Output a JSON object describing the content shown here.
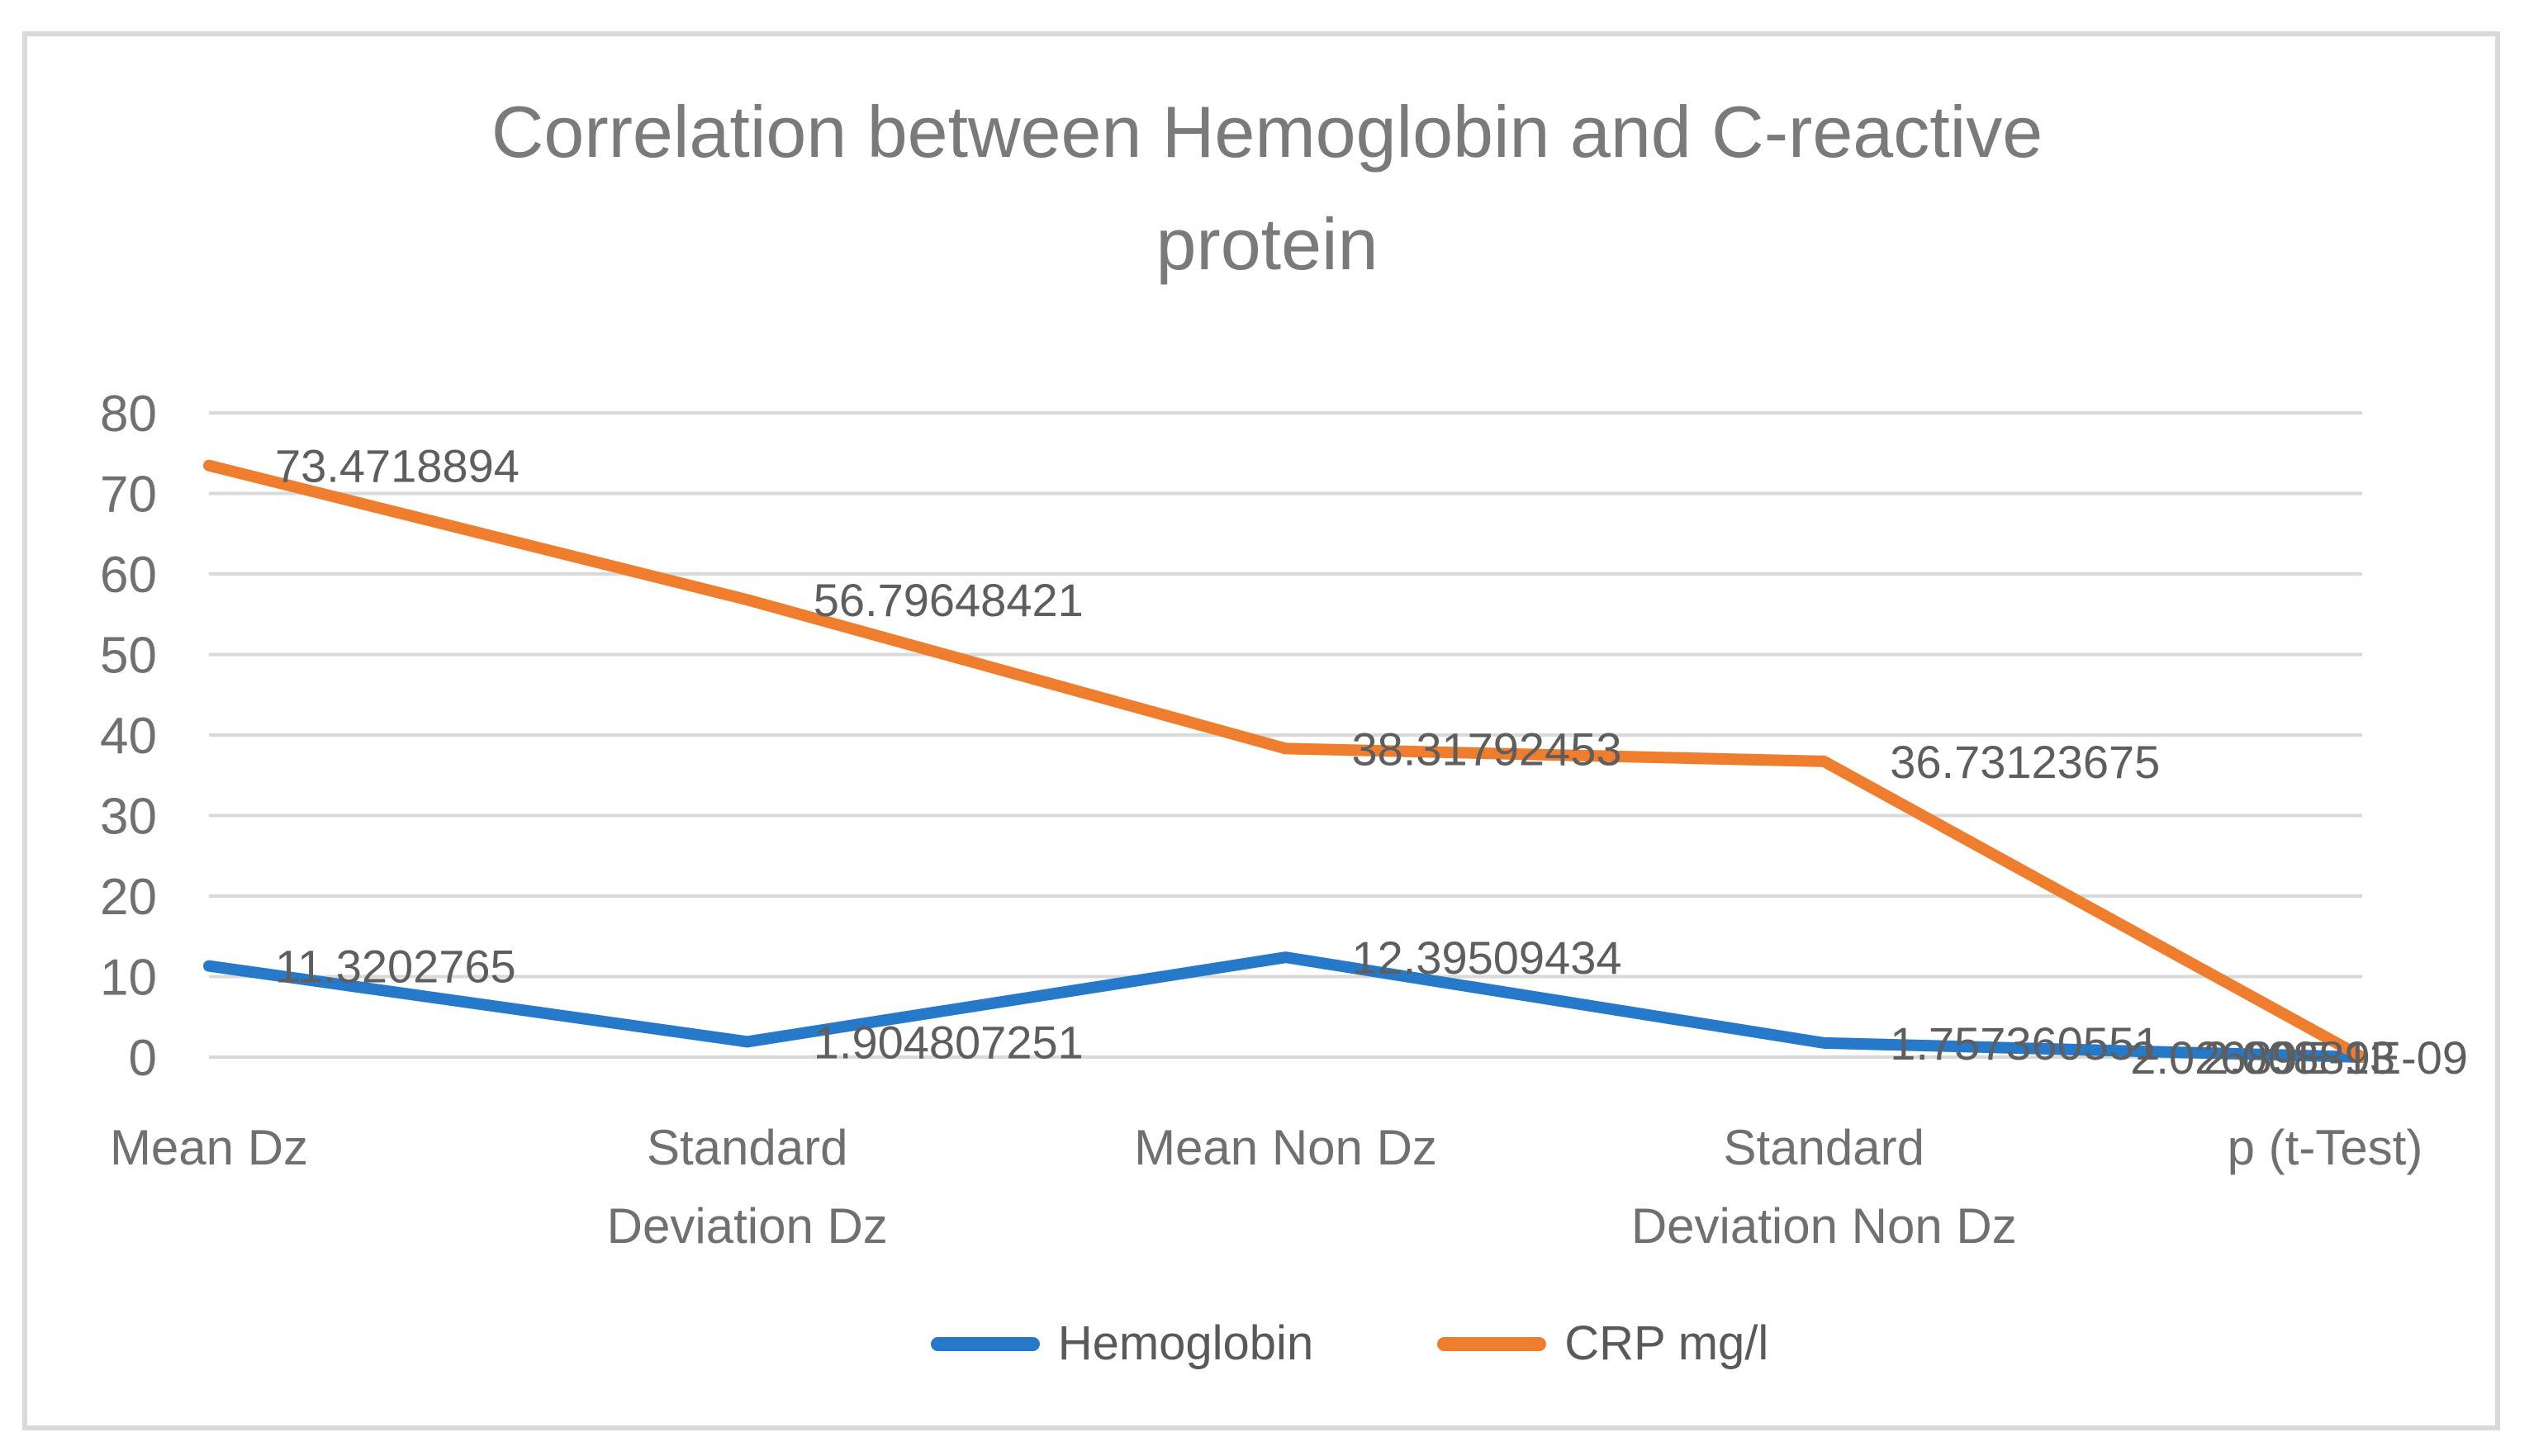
{
  "chart_data": {
    "type": "line",
    "title": "Correlation between Hemoglobin and C-reactive protein",
    "categories": [
      "Mean Dz",
      "Standard Deviation Dz",
      "Mean Non Dz",
      "Standard Deviation Non Dz",
      "p (t-Test)"
    ],
    "category_label_lines": [
      [
        "Mean Dz"
      ],
      [
        "Standard",
        "Deviation Dz"
      ],
      [
        "Mean Non Dz"
      ],
      [
        "Standard",
        "Deviation Non Dz"
      ],
      [
        "p (t-Test)"
      ]
    ],
    "y_axis": {
      "min": 0,
      "max": 80,
      "step": 10,
      "tick_labels": [
        "0",
        "10",
        "20",
        "30",
        "40",
        "50",
        "60",
        "70",
        "80"
      ]
    },
    "xlabel": "",
    "ylabel": "",
    "grid": true,
    "legend_position": "bottom",
    "series": [
      {
        "name": "Hemoglobin",
        "color": "#2679C8",
        "values": [
          11.3202765,
          1.904807251,
          12.39509434,
          1.757360551,
          2.02689e-13
        ],
        "data_labels": [
          "11.3202765",
          "1.904807251",
          "12.39509434",
          "1.757360551",
          "2.02689E-13"
        ]
      },
      {
        "name": "CRP mg/l",
        "color": "#EE7D2E",
        "values": [
          73.4718894,
          56.79648421,
          38.31792453,
          36.73123675,
          2.00889e-09
        ],
        "data_labels": [
          "73.4718894",
          "56.79648421",
          "38.31792453",
          "36.73123675",
          "2.00889E-09"
        ]
      }
    ],
    "annotations": "The two p (t-Test) data labels overlap each other at the bottom right of the plot area"
  },
  "legend": {
    "items": [
      {
        "label": "Hemoglobin",
        "color": "#2679C8"
      },
      {
        "label": "CRP mg/l",
        "color": "#EE7D2E"
      }
    ]
  },
  "colors": {
    "hemoglobin_blue": "#2679C8",
    "crp_orange": "#EE7D2E",
    "gridline": "#D9D9D9",
    "frame_border": "#D9D9D9",
    "text_gray": "#707070",
    "data_label_gray": "#5E5E5E"
  }
}
